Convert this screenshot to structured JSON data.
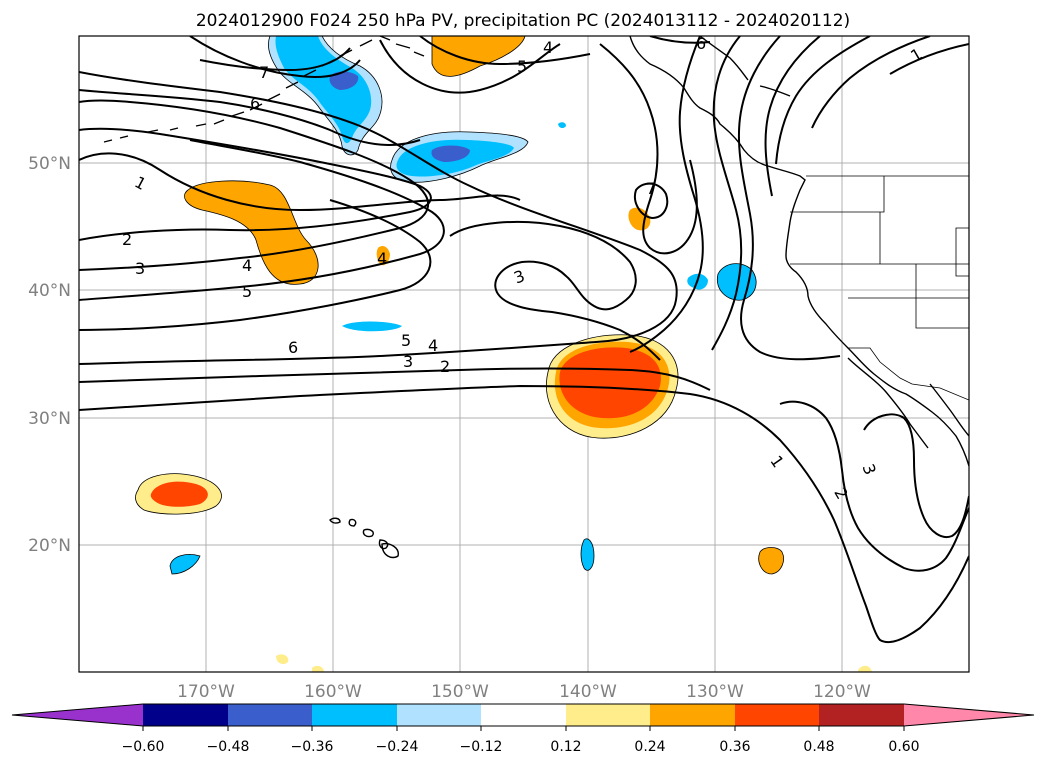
{
  "title": "2024012900 F024 250 hPa PV, precipitation PC (2024013112 - 2024020112)",
  "lon_ticks": [
    "170°W",
    "160°W",
    "150°W",
    "140°W",
    "130°W",
    "120°W"
  ],
  "lat_ticks": [
    "50°N",
    "40°N",
    "30°N",
    "20°N"
  ],
  "colorbar": {
    "ticks": [
      "−0.60",
      "−0.48",
      "−0.36",
      "−0.24",
      "−0.12",
      "0.12",
      "0.24",
      "0.36",
      "0.48",
      "0.60"
    ],
    "colors": [
      "#9932cc",
      "#00008b",
      "#3a5fcd",
      "#00bfff",
      "#b0e2ff",
      "#ffffff",
      "#ffec8b",
      "#ffa500",
      "#ff4500",
      "#b22222",
      "#ff88aa"
    ]
  },
  "contour_labels": [
    "1",
    "2",
    "3",
    "4",
    "5",
    "6",
    "7"
  ],
  "map_extent": {
    "lon": [
      -180,
      -110
    ],
    "lat": [
      10,
      60
    ]
  }
}
